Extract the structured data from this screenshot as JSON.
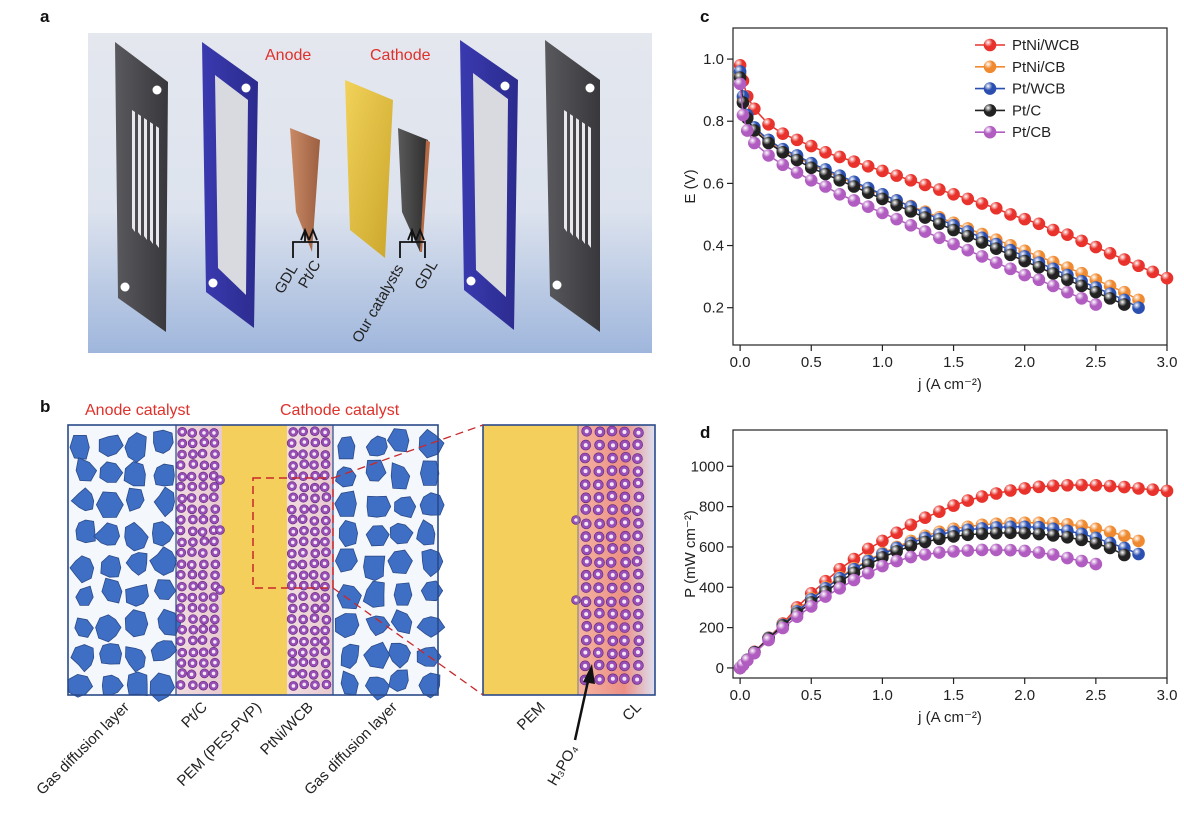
{
  "panel_a": {
    "letter": "a",
    "anode": "Anode",
    "cathode": "Cathode",
    "gdl_left": "GDL",
    "ptc": "Pt/C",
    "our": "Our catalysts",
    "gdl_right": "GDL"
  },
  "panel_b": {
    "letter": "b",
    "anode_catalyst": "Anode catalyst",
    "cathode_catalyst": "Cathode catalyst",
    "layers": [
      "Gas diffusion layer",
      "Pt/C",
      "PEM (PES-PVP)",
      "PtNi/WCB",
      "Gas diffusion layer"
    ],
    "zoom_layers": [
      "PEM",
      "CL"
    ],
    "acid": "H₃PO₄"
  },
  "chart_data": [
    {
      "type": "line",
      "panel": "c",
      "xlabel": "j (A cm⁻²)",
      "ylabel": "E (V)",
      "legend": "upper right",
      "xlim": [
        -0.05,
        3.0
      ],
      "ylim": [
        0.08,
        1.1
      ],
      "xticks": [
        {
          "value": 0,
          "label": "0.0"
        },
        0.5,
        {
          "value": 1,
          "label": "1.0"
        },
        1.5,
        {
          "value": 2,
          "label": "2.0"
        },
        2.5,
        {
          "value": 3,
          "label": "3.0"
        }
      ],
      "yticks": [
        0.2,
        0.4,
        0.6,
        0.8,
        {
          "value": 1,
          "label": "1.0"
        }
      ],
      "x": [
        0,
        0.02,
        0.05,
        0.1,
        0.2,
        0.3,
        0.4,
        0.5,
        0.6,
        0.7,
        0.8,
        0.9,
        1.0,
        1.1,
        1.2,
        1.3,
        1.4,
        1.5,
        1.6,
        1.7,
        1.8,
        1.9,
        2.0,
        2.1,
        2.2,
        2.3,
        2.4,
        2.5,
        2.6,
        2.7,
        2.8,
        2.9,
        3.0
      ],
      "series": [
        {
          "name": "PtNi/WCB",
          "color": "#e8322b",
          "values": [
            0.98,
            0.93,
            0.88,
            0.84,
            0.79,
            0.76,
            0.74,
            0.72,
            0.7,
            0.685,
            0.67,
            0.655,
            0.64,
            0.625,
            0.61,
            0.595,
            0.58,
            0.565,
            0.55,
            0.535,
            0.52,
            0.5,
            0.485,
            0.47,
            0.45,
            0.435,
            0.415,
            0.395,
            0.375,
            0.355,
            0.335,
            0.315,
            0.295
          ]
        },
        {
          "name": "PtNi/CB",
          "color": "#f08a30",
          "values": [
            0.95,
            0.87,
            0.815,
            0.775,
            0.735,
            0.705,
            0.685,
            0.66,
            0.64,
            0.62,
            0.6,
            0.582,
            0.563,
            0.545,
            0.527,
            0.509,
            0.491,
            0.473,
            0.455,
            0.437,
            0.419,
            0.401,
            0.383,
            0.365,
            0.347,
            0.329,
            0.311,
            0.29,
            0.27,
            0.25,
            0.225,
            null,
            null
          ]
        },
        {
          "name": "Pt/WCB",
          "color": "#2a4fb0",
          "values": [
            0.96,
            0.88,
            0.82,
            0.78,
            0.74,
            0.71,
            0.69,
            0.665,
            0.645,
            0.625,
            0.605,
            0.585,
            0.565,
            0.545,
            0.525,
            0.505,
            0.485,
            0.465,
            0.445,
            0.425,
            0.405,
            0.385,
            0.365,
            0.345,
            0.325,
            0.305,
            0.285,
            0.265,
            0.245,
            0.225,
            0.2,
            null,
            null
          ]
        },
        {
          "name": "Pt/C",
          "color": "#222222",
          "values": [
            0.94,
            0.86,
            0.81,
            0.77,
            0.73,
            0.7,
            0.675,
            0.65,
            0.63,
            0.61,
            0.59,
            0.57,
            0.55,
            0.53,
            0.51,
            0.49,
            0.47,
            0.45,
            0.43,
            0.41,
            0.39,
            0.37,
            0.35,
            0.33,
            0.31,
            0.29,
            0.27,
            0.25,
            0.23,
            0.21,
            null,
            null,
            null
          ]
        },
        {
          "name": "Pt/CB",
          "color": "#b05cc0",
          "values": [
            0.92,
            0.82,
            0.77,
            0.73,
            0.69,
            0.66,
            0.635,
            0.61,
            0.59,
            0.565,
            0.545,
            0.525,
            0.505,
            0.485,
            0.465,
            0.445,
            0.425,
            0.405,
            0.385,
            0.365,
            0.345,
            0.325,
            0.305,
            0.29,
            0.27,
            0.25,
            0.23,
            0.21,
            null,
            null,
            null,
            null,
            null
          ]
        }
      ]
    },
    {
      "type": "line",
      "panel": "d",
      "xlabel": "j (A cm⁻²)",
      "ylabel": "P (mW cm⁻²)",
      "legend": false,
      "xlim": [
        -0.05,
        3.0
      ],
      "ylim": [
        -50,
        1180
      ],
      "xticks": [
        {
          "value": 0,
          "label": "0.0"
        },
        0.5,
        {
          "value": 1,
          "label": "1.0"
        },
        1.5,
        {
          "value": 2,
          "label": "2.0"
        },
        2.5,
        {
          "value": 3,
          "label": "3.0"
        }
      ],
      "yticks": [
        0,
        200,
        400,
        600,
        800,
        1000
      ],
      "x": [
        0,
        0.02,
        0.05,
        0.1,
        0.2,
        0.3,
        0.4,
        0.5,
        0.6,
        0.7,
        0.8,
        0.9,
        1.0,
        1.1,
        1.2,
        1.3,
        1.4,
        1.5,
        1.6,
        1.7,
        1.8,
        1.9,
        2.0,
        2.1,
        2.2,
        2.3,
        2.4,
        2.5,
        2.6,
        2.7,
        2.8,
        2.9,
        3.0
      ],
      "series": [
        {
          "name": "PtNi/WCB",
          "color": "#e8322b",
          "values": [
            0,
            15,
            40,
            80,
            150,
            220,
            300,
            370,
            430,
            490,
            540,
            590,
            630,
            670,
            710,
            745,
            775,
            805,
            830,
            850,
            865,
            880,
            890,
            898,
            903,
            906,
            907,
            906,
            902,
            897,
            890,
            884,
            878
          ]
        },
        {
          "name": "PtNi/CB",
          "color": "#f08a30",
          "values": [
            0,
            15,
            40,
            78,
            148,
            215,
            285,
            345,
            400,
            450,
            495,
            535,
            570,
            600,
            630,
            655,
            675,
            690,
            700,
            710,
            715,
            718,
            720,
            720,
            718,
            712,
            705,
            690,
            675,
            655,
            630,
            null,
            null
          ]
        },
        {
          "name": "Pt/WCB",
          "color": "#2a4fb0",
          "values": [
            0,
            15,
            40,
            78,
            148,
            213,
            280,
            340,
            395,
            445,
            490,
            530,
            565,
            595,
            620,
            645,
            662,
            675,
            685,
            692,
            697,
            700,
            700,
            698,
            690,
            680,
            665,
            645,
            620,
            595,
            565,
            null,
            null
          ]
        },
        {
          "name": "Pt/C",
          "color": "#222222",
          "values": [
            0,
            15,
            39,
            77,
            146,
            210,
            270,
            325,
            378,
            427,
            472,
            512,
            548,
            578,
            605,
            625,
            640,
            652,
            660,
            665,
            668,
            670,
            668,
            664,
            657,
            648,
            635,
            618,
            595,
            560,
            null,
            null,
            null
          ]
        },
        {
          "name": "Pt/CB",
          "color": "#b05cc0",
          "values": [
            0,
            14,
            38,
            73,
            138,
            198,
            254,
            305,
            354,
            395,
            436,
            470,
            505,
            530,
            550,
            563,
            572,
            578,
            582,
            585,
            585,
            584,
            580,
            572,
            562,
            545,
            530,
            515,
            null,
            null,
            null,
            null,
            null
          ]
        }
      ]
    }
  ]
}
